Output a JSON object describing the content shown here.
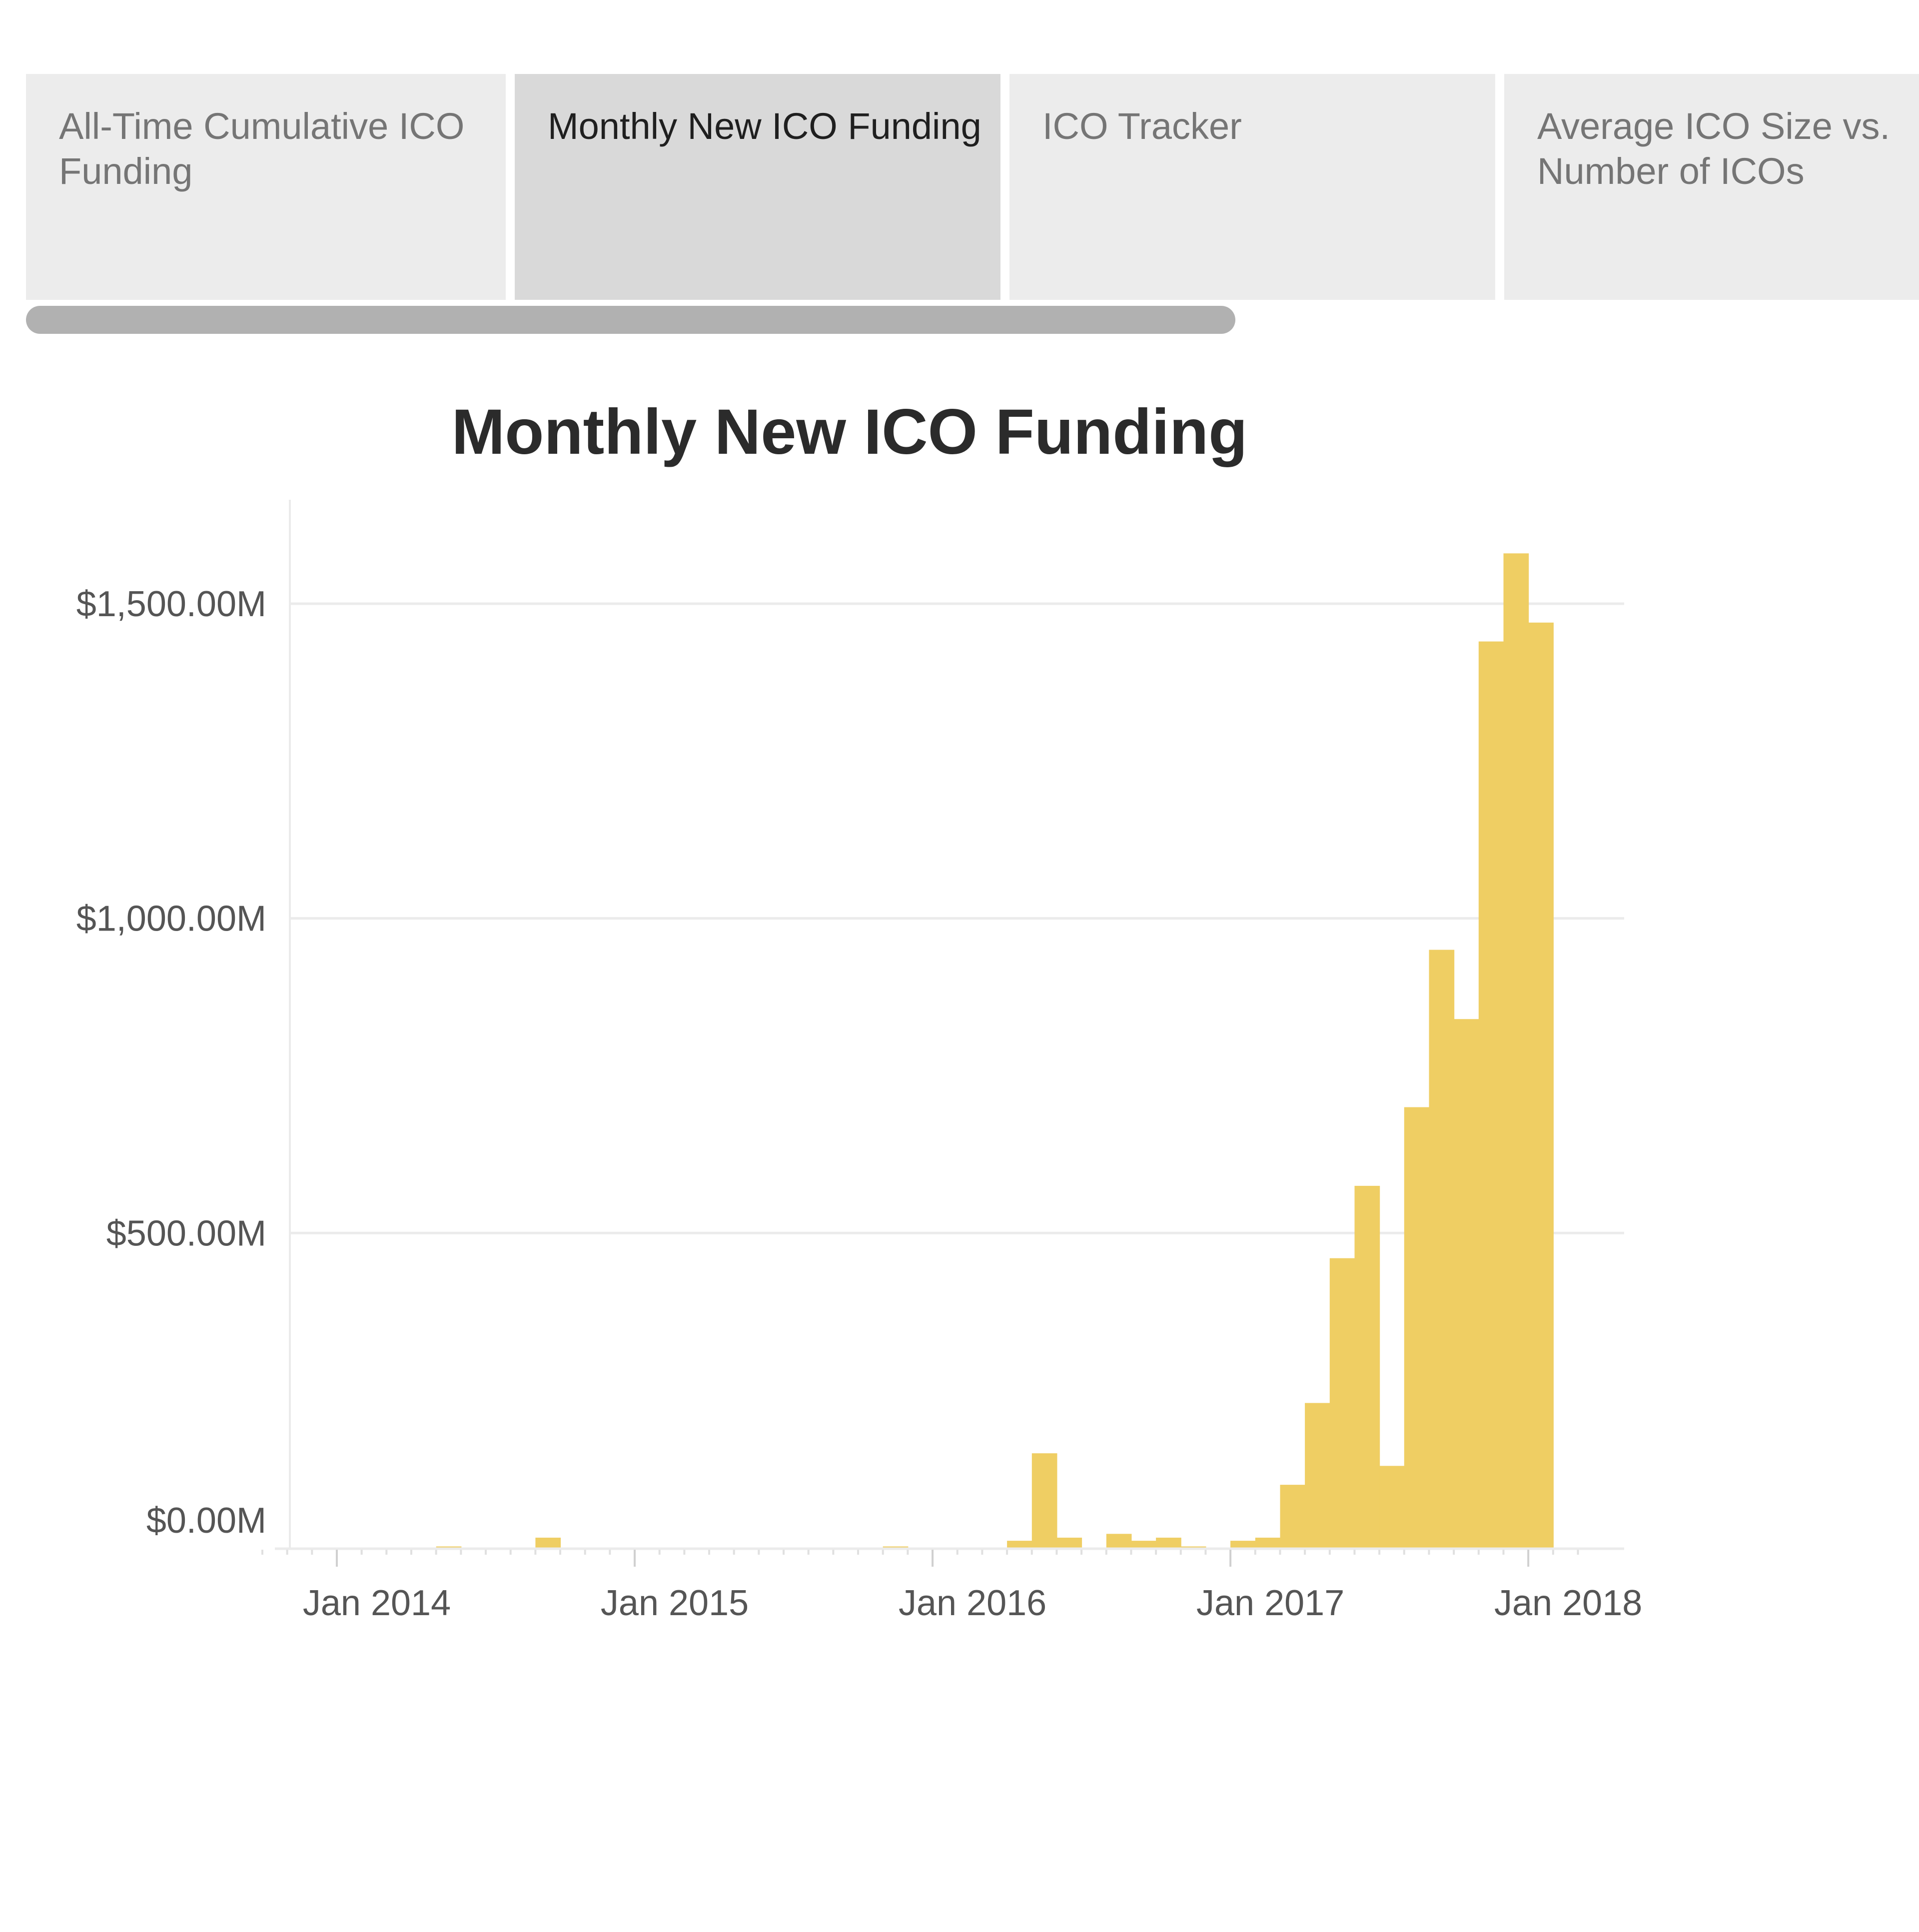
{
  "tabs": [
    {
      "label": "All-Time Cumulative ICO Funding",
      "active": false
    },
    {
      "label": "Monthly New ICO Funding",
      "active": true
    },
    {
      "label": "ICO Tracker",
      "active": false
    },
    {
      "label": "Average ICO Size vs. Number of ICOs",
      "active": false
    }
  ],
  "colors": {
    "bar": "#efce63",
    "gridline": "#ebebeb",
    "tab_bg": "#ececec",
    "tab_active_bg": "#d9d9d9",
    "scrollbar": "#b1b1b1",
    "tick_text": "#555555"
  },
  "chart_data": {
    "type": "bar",
    "title": "Monthly New ICO Funding",
    "xlabel": "",
    "ylabel": "",
    "ylim": [
      0,
      1650
    ],
    "y_unit": "$M",
    "yticks": [
      {
        "value": 0,
        "label": "$0.00M"
      },
      {
        "value": 500,
        "label": "$500.00M"
      },
      {
        "value": 1000,
        "label": "$1,000.00M"
      },
      {
        "value": 1500,
        "label": "$1,500.00M"
      }
    ],
    "x_range": [
      "Oct 2013",
      "Mar 2018"
    ],
    "xticks": [
      {
        "value": "2014-01",
        "label": "Jan 2014"
      },
      {
        "value": "2015-01",
        "label": "Jan 2015"
      },
      {
        "value": "2016-01",
        "label": "Jan 2016"
      },
      {
        "value": "2017-01",
        "label": "Jan 2017"
      },
      {
        "value": "2018-01",
        "label": "Jan 2018"
      }
    ],
    "grid": true,
    "legend": "none",
    "categories": [
      "2014-05",
      "2014-09",
      "2015-11",
      "2016-04",
      "2016-05",
      "2016-06",
      "2016-08",
      "2016-09",
      "2016-10",
      "2016-11",
      "2017-01",
      "2017-02",
      "2017-03",
      "2017-04",
      "2017-05",
      "2017-06",
      "2017-07",
      "2017-08",
      "2017-09",
      "2017-10",
      "2017-11",
      "2017-12",
      "2018-01"
    ],
    "values": [
      2,
      16,
      2,
      11,
      150,
      16,
      22,
      11,
      16,
      2,
      11,
      16,
      100,
      230,
      460,
      575,
      130,
      700,
      950,
      840,
      1440,
      1580,
      1470
    ]
  }
}
